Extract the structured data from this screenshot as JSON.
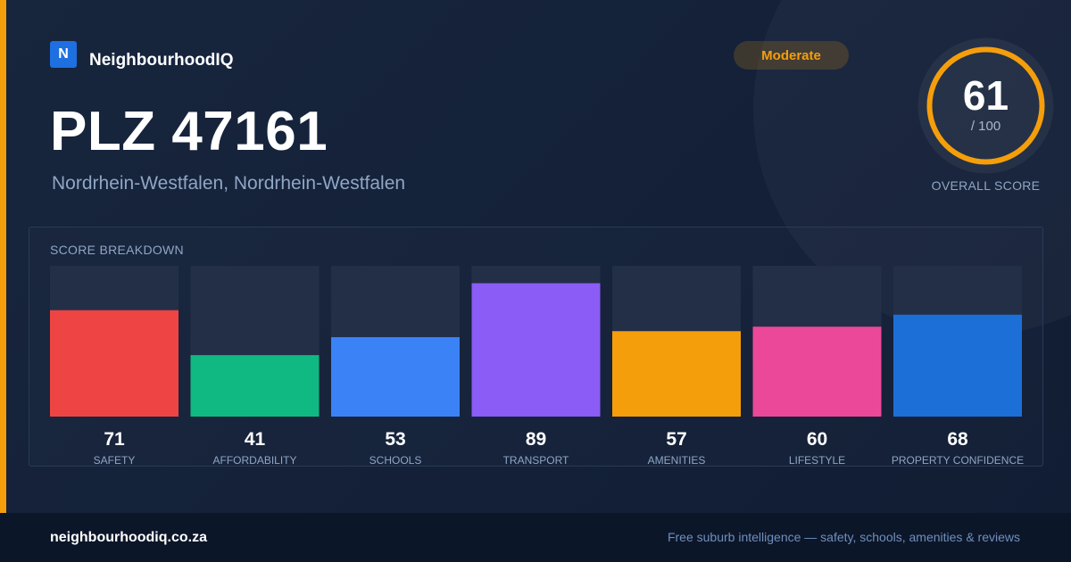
{
  "brand": {
    "logo_letter": "N",
    "name": "NeighbourhoodIQ"
  },
  "header": {
    "title": "PLZ 47161",
    "subtitle": "Nordrhein-Westfalen, Nordrhein-Westfalen",
    "badge": "Moderate"
  },
  "overall": {
    "score": "61",
    "max": "/ 100",
    "label": "OVERALL SCORE",
    "value": 61,
    "ring_color": "#f59e0b"
  },
  "breakdown": {
    "title": "SCORE BREAKDOWN"
  },
  "chart_data": {
    "type": "bar",
    "title": "SCORE BREAKDOWN",
    "categories": [
      "SAFETY",
      "AFFORDABILITY",
      "SCHOOLS",
      "TRANSPORT",
      "AMENITIES",
      "LIFESTYLE",
      "PROPERTY CONFIDENCE"
    ],
    "values": [
      71,
      41,
      53,
      89,
      57,
      60,
      68
    ],
    "colors": [
      "#ef4444",
      "#10b981",
      "#3b82f6",
      "#8b5cf6",
      "#f59e0b",
      "#ec4899",
      "#1d6fd8"
    ],
    "ylim": [
      0,
      100
    ],
    "grid": false,
    "legend": "none"
  },
  "footer": {
    "url": "neighbourhoodiq.co.za",
    "tagline": "Free suburb intelligence — safety, schools, amenities & reviews"
  }
}
